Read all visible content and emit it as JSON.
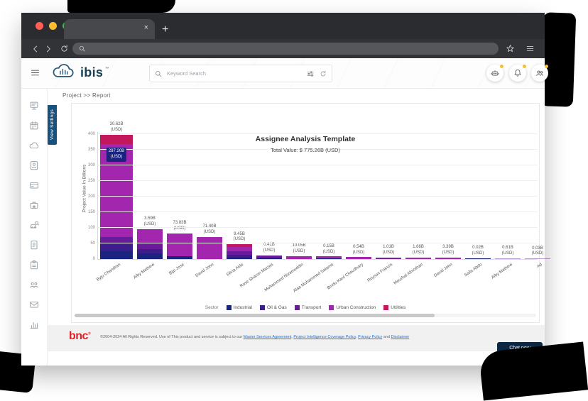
{
  "browser": {
    "tab_close": "×",
    "new_tab": "+",
    "controls": [
      "close",
      "minimize",
      "maximize"
    ]
  },
  "app_header": {
    "logo": "ibis",
    "logo_tm": "™",
    "search_placeholder": "Keyword Search"
  },
  "breadcrumb": "Project >> Report",
  "view_settings_label": "View Settings",
  "sidebar_icons": [
    "equipment",
    "calendar",
    "cloud",
    "contact",
    "card",
    "projects",
    "vehicle-search",
    "invoice",
    "report",
    "community",
    "mail",
    "analytics"
  ],
  "chart_data": {
    "type": "stacked-bar",
    "title": "Assignee Analysis Template",
    "subtitle": "Total Value: $ 775.26B (USD)",
    "ylabel": "Project Value In Billions",
    "unit": "(USD)",
    "ylim": [
      0,
      400
    ],
    "yticks": [
      0,
      50,
      100,
      150,
      200,
      250,
      300,
      350,
      400
    ],
    "grid": true,
    "legend_position": "bottom",
    "legend_title": "Sector",
    "sectors": [
      {
        "name": "Industrial",
        "color": "#1a237e"
      },
      {
        "name": "Oil & Gas",
        "color": "#3d1d8c"
      },
      {
        "name": "Transport",
        "color": "#6a1b9a"
      },
      {
        "name": "Urban Construction",
        "color": "#a226ae"
      },
      {
        "name": "Utilities",
        "color": "#c2185b"
      }
    ],
    "bars": [
      {
        "name": "Byju Chandran",
        "label": "30.62B",
        "badge": "297.20B",
        "segments": [
          [
            0,
            24
          ],
          [
            1,
            28
          ],
          [
            2,
            18
          ],
          [
            3,
            297.2
          ],
          [
            4,
            30.62
          ]
        ]
      },
      {
        "name": "Alby Mathew",
        "label": "3.59B",
        "segments": [
          [
            0,
            18
          ],
          [
            1,
            13
          ],
          [
            2,
            22
          ],
          [
            3,
            40
          ],
          [
            4,
            3.59
          ]
        ]
      },
      {
        "name": "Bijo Jose",
        "label": "73.83B",
        "segments": [
          [
            0,
            8
          ],
          [
            3,
            73.83
          ]
        ]
      },
      {
        "name": "David John",
        "label": "71.40B",
        "segments": [
          [
            3,
            71.4
          ]
        ]
      },
      {
        "name": "Silvia Aide",
        "label": "9.45B",
        "segments": [
          [
            0,
            5
          ],
          [
            1,
            9
          ],
          [
            2,
            11
          ],
          [
            3,
            13
          ],
          [
            4,
            9.45
          ]
        ]
      },
      {
        "name": "Rose Sharon Macias",
        "label": "0.41B",
        "segments": [
          [
            0,
            4
          ],
          [
            2,
            7
          ],
          [
            4,
            0.41
          ]
        ]
      },
      {
        "name": "Mohammed Nizamuddin",
        "label": "10.05B",
        "segments": [
          [
            3,
            10.05
          ]
        ]
      },
      {
        "name": "Alaa Muhammed Salama",
        "label": "0.15B",
        "segments": [
          [
            0,
            2
          ],
          [
            3,
            6
          ]
        ]
      },
      {
        "name": "Bindu Kant Chaudhary",
        "label": "0.54B",
        "segments": [
          [
            3,
            6
          ]
        ]
      },
      {
        "name": "Royson Francis",
        "label": "1.01B",
        "segments": [
          [
            2,
            2
          ],
          [
            3,
            3
          ]
        ]
      },
      {
        "name": "Mourhal Almothan",
        "label": "1.66B",
        "segments": [
          [
            3,
            5
          ]
        ]
      },
      {
        "name": "David John",
        "label": "3.39B",
        "segments": [
          [
            3,
            5
          ]
        ]
      },
      {
        "name": "Saila Abdo",
        "label": "0.02B",
        "segments": [
          [
            0,
            3
          ]
        ]
      },
      {
        "name": "Alby Mathew",
        "label": "0.61B",
        "faded": true,
        "segments": [
          [
            2,
            3
          ]
        ]
      },
      {
        "name": "Ad",
        "label": "0.03B",
        "faded": true,
        "segments": [
          [
            2,
            2
          ]
        ]
      }
    ]
  },
  "footer": {
    "brand": "bnc",
    "copyright": "©2004-2024 All Rights Reserved.",
    "prefix": "Use of This product and service is subject to our",
    "links": [
      "Master Services Agreement",
      "Project Intelligence Coverage Policy",
      "Privacy Policy"
    ],
    "and_word": "and",
    "disclaimer": "Disclaimer"
  },
  "chat_button": "Chat now"
}
